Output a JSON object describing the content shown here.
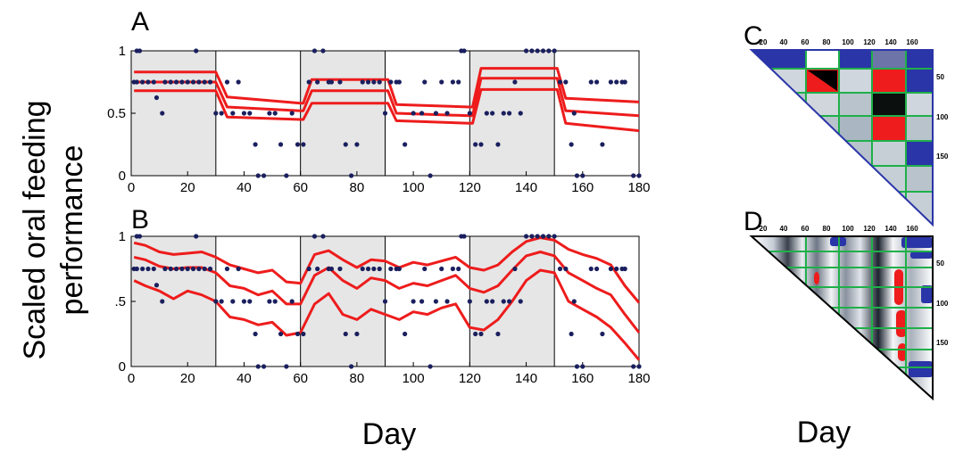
{
  "ylabel": [
    "Scaled oral feeding",
    "performance"
  ],
  "xlabel_left": "Day",
  "xlabel_right": "Day",
  "colors": {
    "point": "#1a1f5e",
    "curve": "#ee1c1c",
    "shade": "#e6e6e6",
    "tri_blue": "#2a35a8",
    "tri_green": "#1fb04a"
  },
  "chart_data": [
    {
      "panel": "A",
      "type": "scatter",
      "xlim": [
        0,
        180
      ],
      "ylim": [
        0,
        1
      ],
      "xticks": [
        "0",
        "20",
        "40",
        "60",
        "80",
        "100",
        "120",
        "140",
        "160",
        "180"
      ],
      "yticks": [
        "0",
        "0.5",
        "1"
      ],
      "shaded_intervals": [
        [
          0,
          30
        ],
        [
          60,
          90
        ],
        [
          120,
          150
        ]
      ],
      "points": [
        [
          2,
          1
        ],
        [
          3,
          1
        ],
        [
          1,
          0.75
        ],
        [
          2,
          0.75
        ],
        [
          4,
          0.75
        ],
        [
          6,
          0.75
        ],
        [
          8,
          0.75
        ],
        [
          9,
          0.625
        ],
        [
          11,
          0.5
        ],
        [
          12,
          0.75
        ],
        [
          14,
          0.75
        ],
        [
          16,
          0.75
        ],
        [
          18,
          0.75
        ],
        [
          20,
          0.75
        ],
        [
          22,
          0.75
        ],
        [
          23,
          1
        ],
        [
          24,
          0.75
        ],
        [
          26,
          0.75
        ],
        [
          28,
          0.75
        ],
        [
          30,
          0.5
        ],
        [
          32,
          0.5
        ],
        [
          34,
          0.75
        ],
        [
          36,
          0.5
        ],
        [
          38,
          0.75
        ],
        [
          40,
          0.5
        ],
        [
          42,
          0.5
        ],
        [
          44,
          0.25
        ],
        [
          45,
          0
        ],
        [
          47,
          0
        ],
        [
          49,
          0.5
        ],
        [
          51,
          0.5
        ],
        [
          53,
          0.25
        ],
        [
          55,
          0
        ],
        [
          57,
          0.5
        ],
        [
          59,
          0.25
        ],
        [
          61,
          0.25
        ],
        [
          63,
          0.75
        ],
        [
          65,
          1
        ],
        [
          66,
          0.75
        ],
        [
          68,
          1
        ],
        [
          70,
          0.75
        ],
        [
          71,
          0.75
        ],
        [
          74,
          0.75
        ],
        [
          76,
          0.25
        ],
        [
          78,
          0
        ],
        [
          80,
          0.25
        ],
        [
          82,
          0.75
        ],
        [
          84,
          0.75
        ],
        [
          86,
          0.75
        ],
        [
          88,
          0.75
        ],
        [
          90,
          0.5
        ],
        [
          92,
          0.75
        ],
        [
          94,
          0.75
        ],
        [
          95,
          0.75
        ],
        [
          97,
          0.25
        ],
        [
          100,
          0.5
        ],
        [
          103,
          0.5
        ],
        [
          104,
          0.75
        ],
        [
          106,
          0
        ],
        [
          108,
          0.5
        ],
        [
          110,
          0.75
        ],
        [
          112,
          0.5
        ],
        [
          114,
          0.75
        ],
        [
          116,
          0.75
        ],
        [
          117,
          1
        ],
        [
          118,
          1
        ],
        [
          120,
          0.5
        ],
        [
          122,
          0.25
        ],
        [
          124,
          0.25
        ],
        [
          126,
          0.5
        ],
        [
          128,
          0.5
        ],
        [
          130,
          0.25
        ],
        [
          132,
          0.5
        ],
        [
          134,
          0.5
        ],
        [
          136,
          0.75
        ],
        [
          138,
          0.5
        ],
        [
          140,
          1
        ],
        [
          142,
          1
        ],
        [
          144,
          1
        ],
        [
          146,
          1
        ],
        [
          148,
          1
        ],
        [
          150,
          1
        ],
        [
          152,
          0.75
        ],
        [
          154,
          0.75
        ],
        [
          156,
          0.25
        ],
        [
          157,
          0.5
        ],
        [
          158,
          0
        ],
        [
          160,
          0
        ],
        [
          163,
          0.75
        ],
        [
          165,
          0.75
        ],
        [
          167,
          0.25
        ],
        [
          170,
          0.75
        ],
        [
          172,
          0.75
        ],
        [
          174,
          0.75
        ],
        [
          175,
          0.75
        ],
        [
          178,
          0
        ],
        [
          180,
          0
        ]
      ],
      "series": [
        {
          "name": "",
          "x": [
            1,
            30,
            34,
            60,
            61,
            64,
            90,
            91,
            94,
            120,
            121,
            124,
            150,
            151,
            154,
            180
          ],
          "y": [
            0.83,
            0.83,
            0.63,
            0.58,
            0.58,
            0.77,
            0.77,
            0.77,
            0.57,
            0.55,
            0.55,
            0.86,
            0.86,
            0.86,
            0.62,
            0.59
          ]
        },
        {
          "name": "",
          "x": [
            1,
            30,
            34,
            60,
            61,
            64,
            90,
            91,
            94,
            120,
            121,
            124,
            150,
            151,
            154,
            180
          ],
          "y": [
            0.75,
            0.75,
            0.55,
            0.52,
            0.52,
            0.68,
            0.68,
            0.68,
            0.5,
            0.48,
            0.48,
            0.78,
            0.78,
            0.78,
            0.52,
            0.48
          ]
        },
        {
          "name": "",
          "x": [
            1,
            30,
            34,
            60,
            61,
            64,
            90,
            91,
            94,
            120,
            121,
            124,
            150,
            151,
            154,
            180
          ],
          "y": [
            0.68,
            0.68,
            0.47,
            0.45,
            0.45,
            0.58,
            0.58,
            0.58,
            0.44,
            0.42,
            0.42,
            0.69,
            0.69,
            0.69,
            0.42,
            0.36
          ]
        }
      ]
    },
    {
      "panel": "B",
      "type": "scatter",
      "xlim": [
        0,
        180
      ],
      "ylim": [
        0,
        1
      ],
      "xticks": [
        "0",
        "20",
        "40",
        "60",
        "80",
        "100",
        "120",
        "140",
        "160",
        "180"
      ],
      "yticks": [
        "0",
        ".5",
        "1"
      ],
      "shaded_intervals": [
        [
          0,
          30
        ],
        [
          60,
          90
        ],
        [
          120,
          150
        ]
      ],
      "points": [
        [
          2,
          1
        ],
        [
          3,
          1
        ],
        [
          1,
          0.75
        ],
        [
          2,
          0.75
        ],
        [
          4,
          0.75
        ],
        [
          6,
          0.75
        ],
        [
          8,
          0.75
        ],
        [
          9,
          0.625
        ],
        [
          11,
          0.5
        ],
        [
          12,
          0.75
        ],
        [
          14,
          0.75
        ],
        [
          16,
          0.75
        ],
        [
          18,
          0.75
        ],
        [
          20,
          0.75
        ],
        [
          22,
          0.75
        ],
        [
          23,
          1
        ],
        [
          24,
          0.75
        ],
        [
          26,
          0.75
        ],
        [
          28,
          0.75
        ],
        [
          30,
          0.5
        ],
        [
          32,
          0.5
        ],
        [
          34,
          0.75
        ],
        [
          36,
          0.5
        ],
        [
          38,
          0.75
        ],
        [
          40,
          0.5
        ],
        [
          42,
          0.5
        ],
        [
          44,
          0.25
        ],
        [
          45,
          0
        ],
        [
          47,
          0
        ],
        [
          49,
          0.5
        ],
        [
          51,
          0.5
        ],
        [
          53,
          0.25
        ],
        [
          55,
          0
        ],
        [
          57,
          0.5
        ],
        [
          59,
          0.25
        ],
        [
          61,
          0.25
        ],
        [
          63,
          0.75
        ],
        [
          65,
          1
        ],
        [
          66,
          0.75
        ],
        [
          68,
          1
        ],
        [
          70,
          0.75
        ],
        [
          71,
          0.75
        ],
        [
          74,
          0.75
        ],
        [
          76,
          0.25
        ],
        [
          78,
          0
        ],
        [
          80,
          0.25
        ],
        [
          82,
          0.75
        ],
        [
          84,
          0.75
        ],
        [
          86,
          0.75
        ],
        [
          88,
          0.75
        ],
        [
          90,
          0.5
        ],
        [
          92,
          0.75
        ],
        [
          94,
          0.75
        ],
        [
          95,
          0.75
        ],
        [
          97,
          0.25
        ],
        [
          100,
          0.5
        ],
        [
          103,
          0.5
        ],
        [
          104,
          0.75
        ],
        [
          106,
          0
        ],
        [
          108,
          0.5
        ],
        [
          110,
          0.75
        ],
        [
          112,
          0.5
        ],
        [
          114,
          0.75
        ],
        [
          116,
          0.75
        ],
        [
          117,
          1
        ],
        [
          118,
          1
        ],
        [
          120,
          0.5
        ],
        [
          122,
          0.25
        ],
        [
          124,
          0.25
        ],
        [
          126,
          0.5
        ],
        [
          128,
          0.5
        ],
        [
          130,
          0.25
        ],
        [
          132,
          0.5
        ],
        [
          134,
          0.5
        ],
        [
          136,
          0.75
        ],
        [
          138,
          0.5
        ],
        [
          140,
          1
        ],
        [
          142,
          1
        ],
        [
          144,
          1
        ],
        [
          146,
          1
        ],
        [
          148,
          1
        ],
        [
          150,
          1
        ],
        [
          152,
          0.75
        ],
        [
          154,
          0.75
        ],
        [
          156,
          0.25
        ],
        [
          157,
          0.5
        ],
        [
          158,
          0
        ],
        [
          160,
          0
        ],
        [
          163,
          0.75
        ],
        [
          165,
          0.75
        ],
        [
          167,
          0.25
        ],
        [
          170,
          0.75
        ],
        [
          172,
          0.75
        ],
        [
          174,
          0.75
        ],
        [
          175,
          0.75
        ],
        [
          178,
          0
        ],
        [
          180,
          0
        ]
      ],
      "series": [
        {
          "name": "",
          "x": [
            1,
            5,
            10,
            15,
            20,
            25,
            30,
            35,
            40,
            45,
            50,
            55,
            60,
            65,
            70,
            75,
            80,
            85,
            90,
            95,
            100,
            105,
            110,
            115,
            120,
            125,
            130,
            135,
            140,
            145,
            150,
            155,
            160,
            165,
            170,
            175,
            180
          ],
          "y": [
            0.95,
            0.93,
            0.88,
            0.86,
            0.87,
            0.88,
            0.84,
            0.78,
            0.75,
            0.72,
            0.74,
            0.65,
            0.64,
            0.86,
            0.89,
            0.82,
            0.76,
            0.82,
            0.81,
            0.76,
            0.8,
            0.78,
            0.81,
            0.84,
            0.76,
            0.74,
            0.78,
            0.88,
            0.96,
            0.99,
            0.97,
            0.9,
            0.86,
            0.83,
            0.78,
            0.62,
            0.49
          ]
        },
        {
          "name": "",
          "x": [
            1,
            5,
            10,
            15,
            20,
            25,
            30,
            35,
            40,
            45,
            50,
            55,
            60,
            65,
            70,
            75,
            80,
            85,
            90,
            95,
            100,
            105,
            110,
            115,
            120,
            125,
            130,
            135,
            140,
            145,
            150,
            155,
            160,
            165,
            170,
            175,
            180
          ],
          "y": [
            0.84,
            0.82,
            0.77,
            0.75,
            0.76,
            0.76,
            0.72,
            0.62,
            0.6,
            0.55,
            0.58,
            0.48,
            0.48,
            0.7,
            0.76,
            0.66,
            0.6,
            0.68,
            0.66,
            0.6,
            0.64,
            0.62,
            0.66,
            0.7,
            0.6,
            0.57,
            0.62,
            0.74,
            0.85,
            0.88,
            0.85,
            0.72,
            0.66,
            0.6,
            0.55,
            0.4,
            0.26
          ]
        },
        {
          "name": "",
          "x": [
            1,
            5,
            10,
            15,
            20,
            25,
            30,
            35,
            40,
            45,
            50,
            55,
            60,
            65,
            70,
            75,
            80,
            85,
            90,
            95,
            100,
            105,
            110,
            115,
            120,
            125,
            130,
            135,
            140,
            145,
            150,
            155,
            160,
            165,
            170,
            175,
            180
          ],
          "y": [
            0.66,
            0.62,
            0.58,
            0.52,
            0.58,
            0.55,
            0.5,
            0.38,
            0.36,
            0.32,
            0.34,
            0.24,
            0.26,
            0.48,
            0.56,
            0.4,
            0.36,
            0.44,
            0.4,
            0.36,
            0.42,
            0.4,
            0.45,
            0.48,
            0.3,
            0.28,
            0.36,
            0.5,
            0.66,
            0.74,
            0.72,
            0.5,
            0.44,
            0.38,
            0.3,
            0.18,
            0.05
          ]
        }
      ]
    },
    {
      "panel": "C",
      "type": "heatmap",
      "tick_labels": [
        "20",
        "40",
        "60",
        "80",
        "100",
        "120",
        "140",
        "160"
      ],
      "right_tick_labels": [
        "50",
        "100",
        "150"
      ]
    },
    {
      "panel": "D",
      "type": "heatmap",
      "tick_labels": [
        "20",
        "40",
        "60",
        "80",
        "100",
        "120",
        "140",
        "160"
      ],
      "right_tick_labels": [
        "50",
        "100",
        "150"
      ]
    }
  ]
}
